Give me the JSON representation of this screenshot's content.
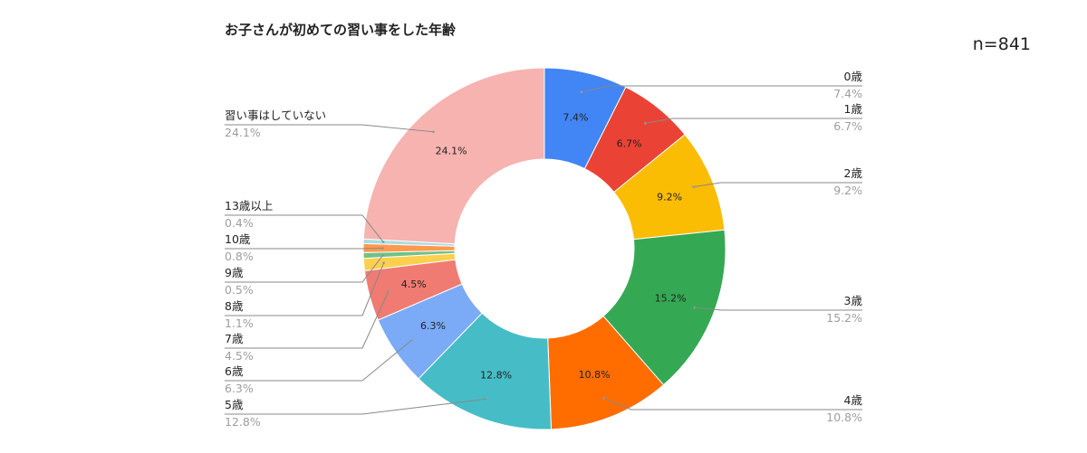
{
  "chart_data": {
    "type": "pie",
    "donut": true,
    "title": "お子さんが初めての習い事をした年齢",
    "sample_size": "n=841",
    "slices": [
      {
        "label": "0歳",
        "value": 7.4,
        "display": "7.4%",
        "color": "#4285F4"
      },
      {
        "label": "1歳",
        "value": 6.7,
        "display": "6.7%",
        "color": "#EA4335"
      },
      {
        "label": "2歳",
        "value": 9.2,
        "display": "9.2%",
        "color": "#FBBC04"
      },
      {
        "label": "3歳",
        "value": 15.2,
        "display": "15.2%",
        "color": "#34A853"
      },
      {
        "label": "4歳",
        "value": 10.8,
        "display": "10.8%",
        "color": "#FF6D01"
      },
      {
        "label": "5歳",
        "value": 12.8,
        "display": "12.8%",
        "color": "#46BDC6"
      },
      {
        "label": "6歳",
        "value": 6.3,
        "display": "6.3%",
        "color": "#7BAAF7"
      },
      {
        "label": "7歳",
        "value": 4.5,
        "display": "4.5%",
        "color": "#F07B72"
      },
      {
        "label": "8歳",
        "value": 1.1,
        "display": "1.1%",
        "color": "#FCD04F"
      },
      {
        "label": "9歳",
        "value": 0.5,
        "display": "0.5%",
        "color": "#71C287"
      },
      {
        "label": "10歳",
        "value": 0.8,
        "display": "0.8%",
        "color": "#FF994D"
      },
      {
        "label": "13歳以上",
        "value": 0.4,
        "display": "0.4%",
        "color": "#A8DCE0"
      },
      {
        "label": "習い事はしていない",
        "value": 24.1,
        "display": "24.1%",
        "color": "#F6B3B0"
      }
    ]
  }
}
